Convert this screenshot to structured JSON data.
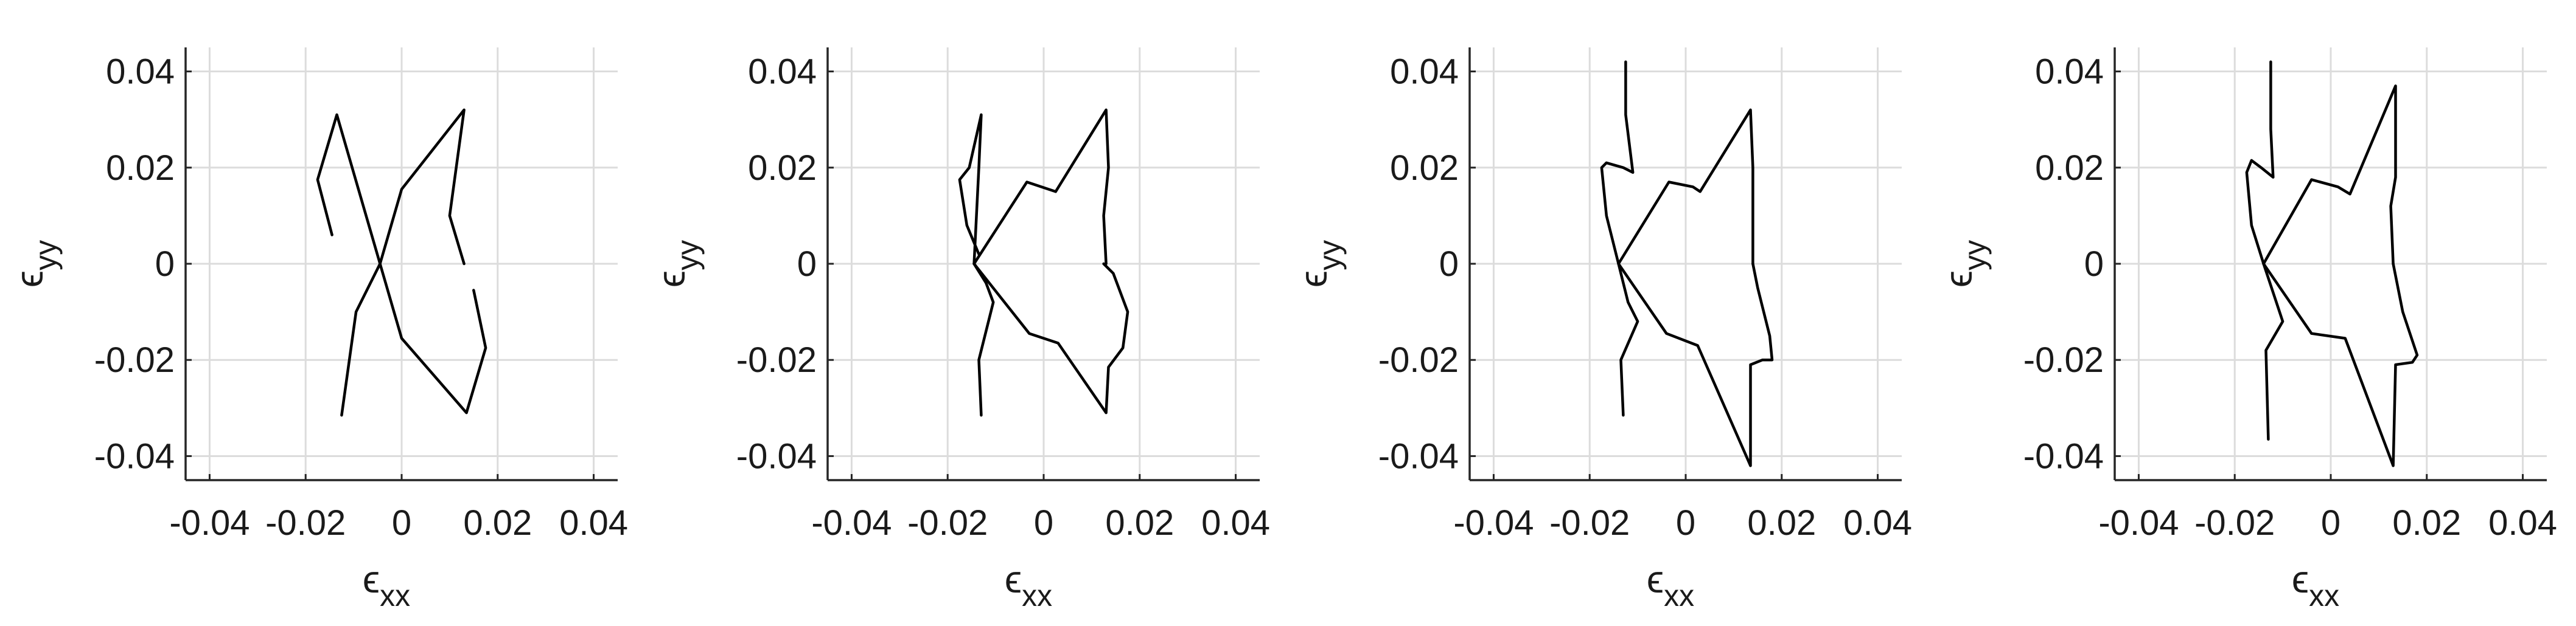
{
  "chart_data": [
    {
      "type": "line",
      "xlabel": {
        "symbol": "ϵ",
        "sub": "xx"
      },
      "ylabel": {
        "symbol": "ϵ",
        "sub": "yy"
      },
      "xlim": [
        -0.045,
        0.045
      ],
      "ylim": [
        -0.045,
        0.045
      ],
      "xticks": [
        -0.04,
        -0.02,
        0,
        0.02,
        0.04
      ],
      "xtick_labels": [
        "-0.04",
        "-0.02",
        "0",
        "0.02",
        "0.04"
      ],
      "yticks": [
        -0.04,
        -0.02,
        0,
        0.02,
        0.04
      ],
      "ytick_labels": [
        "-0.04",
        "-0.02",
        "0",
        "0.02",
        "0.04"
      ],
      "grid": true,
      "series": [
        {
          "x": [
            -0.0045,
            -0.0135,
            -0.0175,
            -0.0145
          ],
          "y": [
            0.0,
            0.031,
            0.0175,
            0.006
          ]
        },
        {
          "x": [
            -0.0045,
            0.0,
            0.013,
            0.01,
            0.013
          ],
          "y": [
            0.0,
            0.0155,
            0.032,
            0.01,
            0.0
          ]
        },
        {
          "x": [
            -0.0045,
            -0.0095,
            -0.0125
          ],
          "y": [
            0.0,
            -0.01,
            -0.0315
          ]
        },
        {
          "x": [
            -0.0045,
            0.0,
            0.0135,
            0.0175,
            0.015
          ],
          "y": [
            0.0,
            -0.0155,
            -0.031,
            -0.0175,
            -0.0055
          ]
        }
      ]
    },
    {
      "type": "line",
      "xlabel": {
        "symbol": "ϵ",
        "sub": "xx"
      },
      "ylabel": {
        "symbol": "ϵ",
        "sub": "yy"
      },
      "xlim": [
        -0.045,
        0.045
      ],
      "ylim": [
        -0.045,
        0.045
      ],
      "xticks": [
        -0.04,
        -0.02,
        0,
        0.02,
        0.04
      ],
      "xtick_labels": [
        "-0.04",
        "-0.02",
        "0",
        "0.02",
        "0.04"
      ],
      "yticks": [
        -0.04,
        -0.02,
        0,
        0.02,
        0.04
      ],
      "ytick_labels": [
        "-0.04",
        "-0.02",
        "0",
        "0.02",
        "0.04"
      ],
      "grid": true,
      "series": [
        {
          "x": [
            -0.0145,
            -0.0135,
            -0.013,
            -0.0155,
            -0.0175,
            -0.016,
            -0.0135
          ],
          "y": [
            0.0,
            0.02,
            0.031,
            0.02,
            0.0175,
            0.008,
            0.002
          ]
        },
        {
          "x": [
            -0.0145,
            -0.0035,
            0.0025,
            0.013,
            0.0135,
            0.0125,
            0.013
          ],
          "y": [
            0.0,
            0.017,
            0.015,
            0.032,
            0.02,
            0.01,
            0.0
          ]
        },
        {
          "x": [
            -0.0145,
            -0.012,
            -0.0105,
            -0.0135,
            -0.013
          ],
          "y": [
            0.0,
            -0.004,
            -0.008,
            -0.02,
            -0.0315
          ]
        },
        {
          "x": [
            -0.0145,
            -0.003,
            0.003,
            0.013,
            0.0135,
            0.0165,
            0.0175,
            0.0145,
            0.0125
          ],
          "y": [
            0.0,
            -0.0145,
            -0.0165,
            -0.031,
            -0.0215,
            -0.0175,
            -0.01,
            -0.002,
            0.0
          ]
        }
      ]
    },
    {
      "type": "line",
      "xlabel": {
        "symbol": "ϵ",
        "sub": "xx"
      },
      "ylabel": {
        "symbol": "ϵ",
        "sub": "yy"
      },
      "xlim": [
        -0.045,
        0.045
      ],
      "ylim": [
        -0.045,
        0.045
      ],
      "xticks": [
        -0.04,
        -0.02,
        0,
        0.02,
        0.04
      ],
      "xtick_labels": [
        "-0.04",
        "-0.02",
        "0",
        "0.02",
        "0.04"
      ],
      "yticks": [
        -0.04,
        -0.02,
        0,
        0.02,
        0.04
      ],
      "ytick_labels": [
        "-0.04",
        "-0.02",
        "0",
        "0.02",
        "0.04"
      ],
      "grid": true,
      "series": [
        {
          "x": [
            -0.014,
            -0.0165,
            -0.0175,
            -0.0165,
            -0.013,
            -0.011,
            -0.0125,
            -0.0125
          ],
          "y": [
            0.0,
            0.01,
            0.02,
            0.021,
            0.02,
            0.019,
            0.031,
            0.042
          ]
        },
        {
          "x": [
            -0.014,
            -0.0035,
            0.0015,
            0.003,
            0.0135,
            0.014,
            0.014
          ],
          "y": [
            0.0,
            0.017,
            0.016,
            0.015,
            0.032,
            0.02,
            0.0
          ]
        },
        {
          "x": [
            -0.014,
            -0.012,
            -0.01,
            -0.0135,
            -0.013
          ],
          "y": [
            0.0,
            -0.008,
            -0.012,
            -0.02,
            -0.0315
          ]
        },
        {
          "x": [
            -0.014,
            -0.004,
            0.0025,
            0.0135,
            0.0135,
            0.016,
            0.018,
            0.0175,
            0.015,
            0.014
          ],
          "y": [
            0.0,
            -0.0145,
            -0.017,
            -0.042,
            -0.021,
            -0.02,
            -0.02,
            -0.015,
            -0.005,
            0.0
          ]
        }
      ]
    },
    {
      "type": "line",
      "xlabel": {
        "symbol": "ϵ",
        "sub": "xx"
      },
      "ylabel": {
        "symbol": "ϵ",
        "sub": "yy"
      },
      "xlim": [
        -0.045,
        0.045
      ],
      "ylim": [
        -0.045,
        0.045
      ],
      "xticks": [
        -0.04,
        -0.02,
        0,
        0.02,
        0.04
      ],
      "xtick_labels": [
        "-0.04",
        "-0.02",
        "0",
        "0.02",
        "0.04"
      ],
      "yticks": [
        -0.04,
        -0.02,
        0,
        0.02,
        0.04
      ],
      "ytick_labels": [
        "-0.04",
        "-0.02",
        "0",
        "0.02",
        "0.04"
      ],
      "grid": true,
      "series": [
        {
          "x": [
            -0.014,
            -0.0165,
            -0.0175,
            -0.0165,
            -0.0145,
            -0.012,
            -0.0125,
            -0.0125
          ],
          "y": [
            0.0,
            0.008,
            0.019,
            0.0215,
            0.02,
            0.018,
            0.028,
            0.042
          ]
        },
        {
          "x": [
            -0.014,
            -0.004,
            0.0015,
            0.004,
            0.0135,
            0.0135,
            0.0125,
            0.013
          ],
          "y": [
            0.0,
            0.0175,
            0.016,
            0.0145,
            0.037,
            0.018,
            0.012,
            0.0
          ]
        },
        {
          "x": [
            -0.014,
            -0.01,
            -0.0135,
            -0.013
          ],
          "y": [
            0.0,
            -0.012,
            -0.018,
            -0.0365
          ]
        },
        {
          "x": [
            -0.014,
            -0.004,
            0.003,
            0.013,
            0.0135,
            0.017,
            0.018,
            0.015,
            0.013
          ],
          "y": [
            0.0,
            -0.0145,
            -0.0155,
            -0.042,
            -0.021,
            -0.0205,
            -0.019,
            -0.01,
            0.0
          ]
        }
      ]
    }
  ]
}
